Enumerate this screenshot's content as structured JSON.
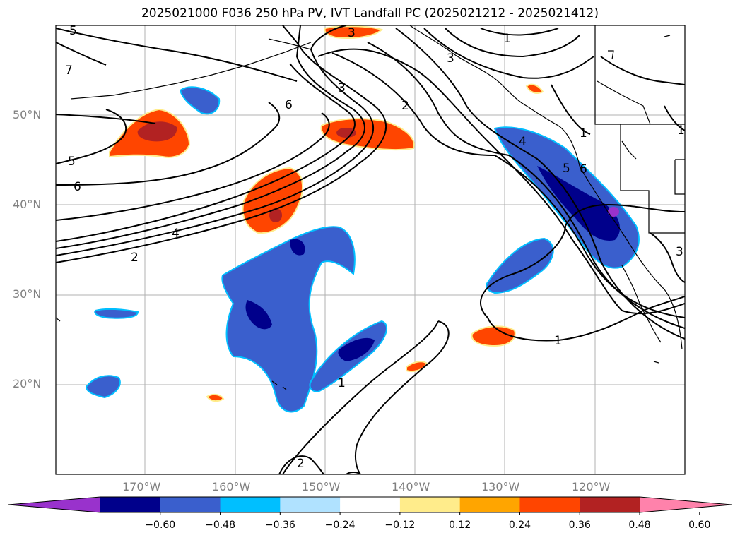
{
  "title": "2025021000 F036 250 hPa PV, IVT Landfall PC (2025021212 - 2025021412)",
  "longitude_labels": [
    "170°W",
    "160°W",
    "150°W",
    "140°W",
    "130°W",
    "120°W"
  ],
  "latitude_labels": [
    "50°N",
    "40°N",
    "30°N",
    "20°N"
  ],
  "colorbar": {
    "colors": [
      "#9932cc",
      "#00008b",
      "#3a5fcd",
      "#00bfff",
      "#b0e2ff",
      "#ffffff",
      "#ffec8b",
      "#ffa500",
      "#ff4500",
      "#b22222",
      "#ff82ab"
    ],
    "tick_labels": [
      "−0.60",
      "−0.48",
      "−0.36",
      "−0.24",
      "−0.12",
      "0.12",
      "0.24",
      "0.36",
      "0.48",
      "0.60"
    ],
    "extend": "both"
  },
  "contour_labels": [
    "5",
    "7",
    "5",
    "6",
    "6",
    "4",
    "2",
    "3",
    "2",
    "3",
    "1",
    "3",
    "1",
    "4",
    "5",
    "6",
    "1",
    "3",
    "1",
    "1",
    "2"
  ],
  "palette": {
    "purple": "#9932cc",
    "navy": "#00008b",
    "blue": "#3a5fcd",
    "cyan": "#00bfff",
    "light_blue": "#b0e2ff",
    "yellow": "#ffec8b",
    "orange": "#ffa500",
    "red_orange": "#ff4500",
    "dark_red": "#b22222",
    "pink": "#ff82ab"
  }
}
